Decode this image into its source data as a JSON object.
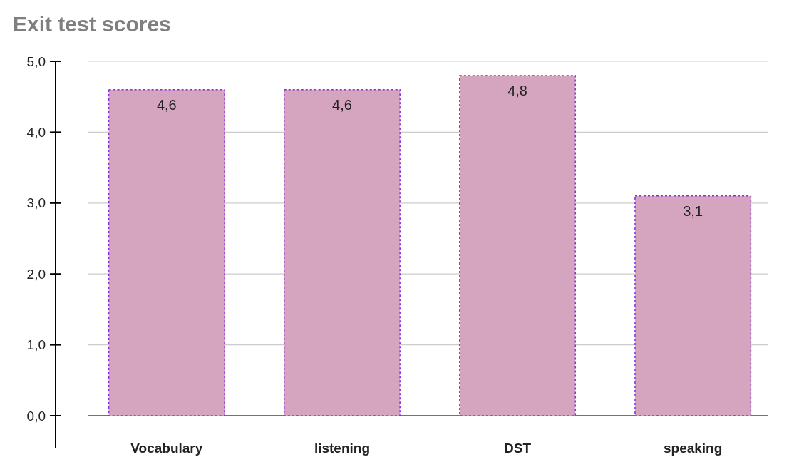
{
  "chart_data": {
    "type": "bar",
    "title": "Exit test scores",
    "categories": [
      "Vocabulary",
      "listening",
      "DST",
      "speaking"
    ],
    "values": [
      4.6,
      4.6,
      4.8,
      3.1
    ],
    "value_labels": [
      "4,6",
      "4,6",
      "4,8",
      "3,1"
    ],
    "color": "#d5a5bf",
    "ylim": [
      0,
      5
    ],
    "yticks": [
      {
        "value": 0,
        "label": "0,0"
      },
      {
        "value": 1,
        "label": "1,0"
      },
      {
        "value": 2,
        "label": "2,0"
      },
      {
        "value": 3,
        "label": "3,0"
      },
      {
        "value": 4,
        "label": "4,0"
      },
      {
        "value": 5,
        "label": "5,0"
      }
    ],
    "grid": "y"
  }
}
